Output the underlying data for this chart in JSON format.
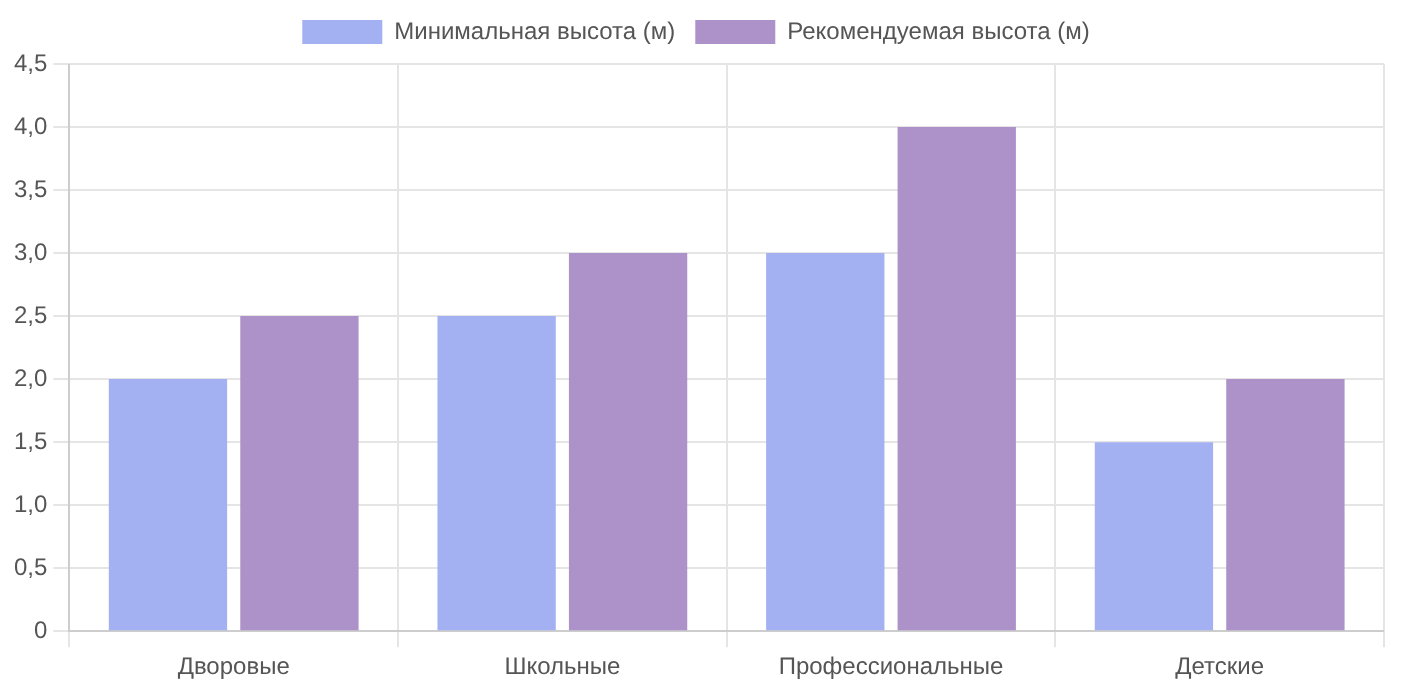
{
  "chart_data": {
    "type": "bar",
    "categories": [
      "Дворовые",
      "Школьные",
      "Профессиональные",
      "Детские"
    ],
    "series": [
      {
        "name": "Минимальная высота (м)",
        "color": "#a3b1f2",
        "values": [
          2,
          2.5,
          3,
          1.5
        ]
      },
      {
        "name": "Рекомендуемая высота (м)",
        "color": "#ad91c9",
        "values": [
          2.5,
          3,
          4,
          2
        ]
      }
    ],
    "ylim": [
      0,
      4.5
    ],
    "yticks": [
      0,
      {
        "value": 0.5,
        "label": "0,5"
      },
      {
        "value": 1,
        "label": "1,0"
      },
      {
        "value": 1.5,
        "label": "1,5"
      },
      {
        "value": 2,
        "label": "2,0"
      },
      {
        "value": 2.5,
        "label": "2,5"
      },
      {
        "value": 3,
        "label": "3,0"
      },
      {
        "value": 3.5,
        "label": "3,5"
      },
      {
        "value": 4,
        "label": "4,0"
      },
      {
        "value": 4.5,
        "label": "4,5"
      }
    ],
    "grid": true,
    "legend": "top"
  }
}
